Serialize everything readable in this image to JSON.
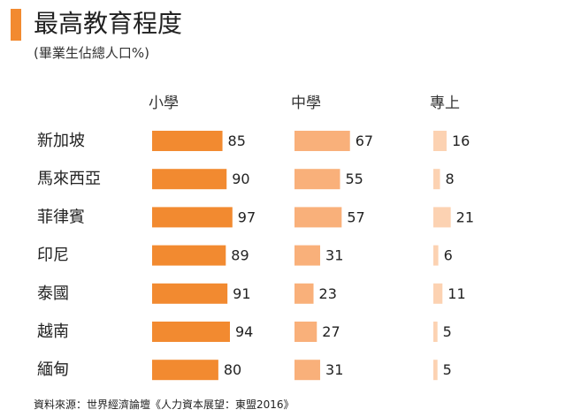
{
  "header": {
    "title": "最高教育程度",
    "subtitle": "(畢業生佔總人口%)"
  },
  "footer": {
    "source": "資料來源：世界經濟論壇《人力資本展望：東盟2016》"
  },
  "colors": {
    "accent": "#f28a30",
    "primary": "#f28a30",
    "secondary": "#f9b07a",
    "tertiary": "#fcd2b2"
  },
  "chart_data": {
    "type": "bar",
    "title": "最高教育程度",
    "subtitle": "(畢業生佔總人口%)",
    "categories": [
      "新加坡",
      "馬來西亞",
      "菲律賓",
      "印尼",
      "泰國",
      "越南",
      "緬甸"
    ],
    "series": [
      {
        "name": "小學",
        "values": [
          85,
          90,
          97,
          89,
          91,
          94,
          80
        ],
        "color": "#f28a30"
      },
      {
        "name": "中學",
        "values": [
          67,
          55,
          57,
          31,
          23,
          27,
          31
        ],
        "color": "#f9b07a"
      },
      {
        "name": "專上",
        "values": [
          16,
          8,
          21,
          6,
          11,
          5,
          5
        ],
        "color": "#fcd2b2"
      }
    ],
    "xlim": [
      0,
      100
    ],
    "orientation": "horizontal",
    "grid": false
  }
}
